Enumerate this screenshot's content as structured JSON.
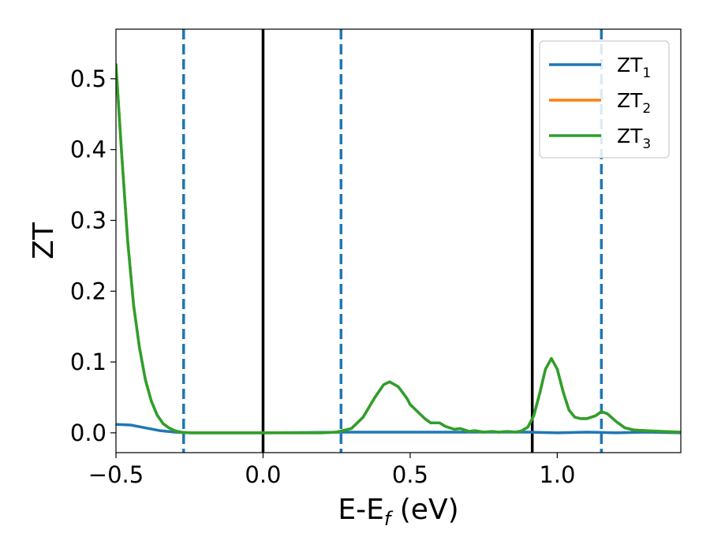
{
  "chart_data": {
    "type": "line",
    "xlabel": "E-E",
    "xlabel_sub": "f",
    "xlabel_unit": " (eV)",
    "ylabel": "ZT",
    "xlim": [
      -0.5,
      1.42
    ],
    "ylim": [
      -0.028,
      0.57
    ],
    "xticks": [
      -0.5,
      0.0,
      0.5,
      1.0
    ],
    "xtick_labels": [
      "−0.5",
      "0.0",
      "0.5",
      "1.0"
    ],
    "yticks": [
      0.0,
      0.1,
      0.2,
      0.3,
      0.4,
      0.5
    ],
    "ytick_labels": [
      "0.0",
      "0.1",
      "0.2",
      "0.3",
      "0.4",
      "0.5"
    ],
    "grid": false,
    "legend_position": "top-right",
    "vertical_lines": [
      {
        "x": -0.27,
        "style": "dashed",
        "color": "#1f77b4"
      },
      {
        "x": 0.0,
        "style": "solid",
        "color": "#000000"
      },
      {
        "x": 0.265,
        "style": "dashed",
        "color": "#1f77b4"
      },
      {
        "x": 0.915,
        "style": "solid",
        "color": "#000000"
      },
      {
        "x": 1.15,
        "style": "dashed",
        "color": "#1f77b4"
      }
    ],
    "series": [
      {
        "name": "ZT",
        "sub": "1",
        "color": "#1f77b4",
        "x": [
          -0.5,
          -0.45,
          -0.4,
          -0.35,
          -0.3,
          -0.25,
          -0.2,
          0.0,
          0.3,
          0.6,
          0.9,
          1.0,
          1.1,
          1.2,
          1.3,
          1.42
        ],
        "y": [
          0.012,
          0.011,
          0.007,
          0.003,
          0.001,
          0.0,
          0.0,
          0.0,
          0.001,
          0.001,
          0.001,
          0.0,
          0.001,
          0.0,
          0.001,
          0.0
        ]
      },
      {
        "name": "ZT",
        "sub": "2",
        "color": "#ff7f0e",
        "x": [
          -0.5,
          -0.48,
          -0.46,
          -0.44,
          -0.42,
          -0.4,
          -0.38,
          -0.36,
          -0.34,
          -0.32,
          -0.3,
          -0.28,
          -0.25,
          -0.2,
          -0.1,
          0.0,
          0.1,
          0.2,
          0.25,
          0.3,
          0.34,
          0.38,
          0.41,
          0.43,
          0.46,
          0.49,
          0.5,
          0.52,
          0.55,
          0.57,
          0.6,
          0.62,
          0.65,
          0.67,
          0.7,
          0.72,
          0.75,
          0.78,
          0.8,
          0.83,
          0.86,
          0.88,
          0.9,
          0.92,
          0.94,
          0.96,
          0.98,
          1.0,
          1.02,
          1.04,
          1.06,
          1.08,
          1.1,
          1.13,
          1.15,
          1.17,
          1.2,
          1.23,
          1.26,
          1.3,
          1.35,
          1.42
        ],
        "y": [
          0.52,
          0.39,
          0.27,
          0.18,
          0.12,
          0.075,
          0.045,
          0.025,
          0.013,
          0.007,
          0.003,
          0.001,
          0.0,
          0.0,
          0.0,
          0.0,
          0.0,
          0.0,
          0.001,
          0.006,
          0.022,
          0.05,
          0.068,
          0.072,
          0.065,
          0.048,
          0.04,
          0.032,
          0.02,
          0.014,
          0.014,
          0.009,
          0.005,
          0.006,
          0.002,
          0.003,
          0.001,
          0.002,
          0.001,
          0.002,
          0.001,
          0.003,
          0.008,
          0.024,
          0.055,
          0.09,
          0.105,
          0.09,
          0.058,
          0.032,
          0.022,
          0.02,
          0.02,
          0.024,
          0.03,
          0.027,
          0.016,
          0.007,
          0.004,
          0.003,
          0.002,
          0.001
        ]
      },
      {
        "name": "ZT",
        "sub": "3",
        "color": "#2ca02c",
        "x": [
          -0.5,
          -0.48,
          -0.46,
          -0.44,
          -0.42,
          -0.4,
          -0.38,
          -0.36,
          -0.34,
          -0.32,
          -0.3,
          -0.28,
          -0.25,
          -0.2,
          -0.1,
          0.0,
          0.1,
          0.2,
          0.25,
          0.3,
          0.34,
          0.38,
          0.41,
          0.43,
          0.46,
          0.49,
          0.5,
          0.52,
          0.55,
          0.57,
          0.6,
          0.62,
          0.65,
          0.67,
          0.7,
          0.72,
          0.75,
          0.78,
          0.8,
          0.83,
          0.86,
          0.88,
          0.9,
          0.92,
          0.94,
          0.96,
          0.98,
          1.0,
          1.02,
          1.04,
          1.06,
          1.08,
          1.1,
          1.13,
          1.15,
          1.17,
          1.2,
          1.23,
          1.26,
          1.3,
          1.35,
          1.42
        ],
        "y": [
          0.52,
          0.39,
          0.27,
          0.18,
          0.12,
          0.075,
          0.045,
          0.025,
          0.013,
          0.007,
          0.003,
          0.001,
          0.0,
          0.0,
          0.0,
          0.0,
          0.0,
          0.0,
          0.001,
          0.006,
          0.022,
          0.05,
          0.068,
          0.072,
          0.065,
          0.048,
          0.04,
          0.032,
          0.02,
          0.014,
          0.014,
          0.009,
          0.005,
          0.006,
          0.002,
          0.003,
          0.001,
          0.002,
          0.001,
          0.002,
          0.001,
          0.003,
          0.008,
          0.024,
          0.055,
          0.09,
          0.105,
          0.09,
          0.058,
          0.032,
          0.022,
          0.02,
          0.02,
          0.024,
          0.03,
          0.027,
          0.016,
          0.007,
          0.004,
          0.003,
          0.002,
          0.001
        ]
      }
    ]
  }
}
